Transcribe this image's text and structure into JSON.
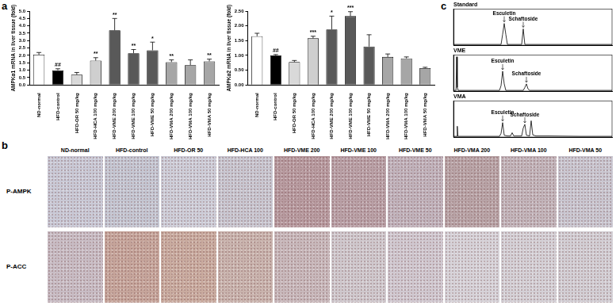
{
  "chart_data": [
    {
      "type": "bar",
      "y_label": "AMPKα1 mRNA in liver tissue (fold)",
      "categories": [
        "ND-normal",
        "HFD-control",
        "HFD-OR 50 mg/kg",
        "HFD-HCA 100 mg/kg",
        "HFD-VME 200 mg/kg",
        "HFD-VME 100 mg/kg",
        "HFD-VME 50 mg/kg",
        "HFD-VMA 200 mg/kg",
        "HFD-VMA 100 mg/kg",
        "HFD-VMA 50 mg/kg"
      ],
      "values": [
        2.05,
        1.0,
        0.7,
        1.65,
        3.7,
        2.15,
        2.35,
        1.55,
        1.35,
        1.6
      ],
      "errors": [
        0.15,
        0.1,
        0.15,
        0.2,
        0.8,
        0.25,
        0.55,
        0.15,
        0.35,
        0.15
      ],
      "annotations": [
        null,
        "##",
        null,
        "**",
        "**",
        "**",
        "*",
        "**",
        null,
        "**"
      ],
      "colors": [
        "#ffffff",
        "#000000",
        "#d9d9d9",
        "#cfcfcf",
        "#595959",
        "#595959",
        "#595959",
        "#a6a6a6",
        "#a6a6a6",
        "#a6a6a6"
      ],
      "ylim": [
        0,
        5
      ],
      "yticks": [
        {
          "value": 0,
          "label": "0.0"
        },
        {
          "value": 0.5,
          "label": "0.5"
        },
        {
          "value": 1,
          "label": "1.0"
        },
        {
          "value": 1.5,
          "label": "1.5"
        },
        {
          "value": 2,
          "label": "2.0"
        },
        {
          "value": 2.5,
          "label": "2.5"
        },
        {
          "value": 3,
          "label": "3.0"
        },
        {
          "value": 3.5,
          "label": "3.5"
        },
        {
          "value": 4,
          "label": "4.0"
        },
        {
          "value": 4.5,
          "label": "4.5"
        },
        {
          "value": 5,
          "label": "5.0"
        }
      ],
      "grid": false
    },
    {
      "type": "bar",
      "y_label": "AMPKα2 mRNA in liver tissue (fold)",
      "categories": [
        "ND-normal",
        "HFD-control",
        "HFD-OR 50 mg/kg",
        "HFD-HCA 100 mg/kg",
        "HFD-VME 200 mg/kg",
        "HFD-VME 100 mg/kg",
        "HFD-VME 50 mg/kg",
        "HFD-VMA 200 mg/kg",
        "HFD-VMA 100 mg/kg",
        "HFD-VMA 50 mg/kg"
      ],
      "values": [
        1.65,
        1.0,
        0.78,
        1.58,
        1.88,
        2.33,
        1.3,
        0.95,
        0.9,
        0.57
      ],
      "errors": [
        0.1,
        0.03,
        0.05,
        0.07,
        0.45,
        0.15,
        0.4,
        0.1,
        0.05,
        0.03
      ],
      "annotations": [
        null,
        "##",
        null,
        "***",
        "*",
        "***",
        null,
        null,
        null,
        null
      ],
      "colors": [
        "#ffffff",
        "#000000",
        "#d9d9d9",
        "#cfcfcf",
        "#595959",
        "#595959",
        "#595959",
        "#a6a6a6",
        "#a6a6a6",
        "#a6a6a6"
      ],
      "ylim": [
        0,
        2.5
      ],
      "yticks": [
        {
          "value": 0,
          "label": "0.00"
        },
        {
          "value": 0.5,
          "label": "0.50"
        },
        {
          "value": 1,
          "label": "1.00"
        },
        {
          "value": 1.5,
          "label": "1.50"
        },
        {
          "value": 2,
          "label": "2.00"
        },
        {
          "value": 2.5,
          "label": "2.50"
        }
      ],
      "grid": false
    },
    {
      "type": "line",
      "title": "Standard",
      "x": [
        0,
        5,
        10,
        15,
        15.5,
        16,
        16.5,
        17,
        20,
        21.5,
        22,
        22.5,
        23,
        30,
        40,
        50
      ],
      "values": [
        2,
        2,
        2,
        2,
        30,
        60,
        30,
        2,
        2,
        2,
        45,
        2,
        2,
        2,
        2,
        2
      ],
      "color": "#000000",
      "xlim": [
        0,
        50
      ],
      "ylim": [
        0,
        100
      ],
      "tick_labels": false,
      "grid": false,
      "annotations": [
        {
          "text": "Esculetin",
          "x": 16
        },
        {
          "text": "Schaftoside",
          "x": 22
        }
      ]
    },
    {
      "type": "line",
      "title": "VME",
      "x": [
        0,
        0.8,
        1,
        1.2,
        1.5,
        5,
        10,
        14.5,
        15,
        15.5,
        16,
        16.5,
        20,
        22,
        22.5,
        23,
        23.5,
        24,
        30,
        40,
        50
      ],
      "values": [
        2,
        2,
        95,
        10,
        2,
        2,
        2,
        2,
        15,
        55,
        20,
        2,
        2,
        2,
        10,
        20,
        6,
        2,
        2,
        2,
        2
      ],
      "color": "#000000",
      "xlim": [
        0,
        50
      ],
      "ylim": [
        0,
        100
      ],
      "tick_labels": false,
      "grid": false,
      "annotations": [
        {
          "text": "Esculetin",
          "x": 15.5
        },
        {
          "text": "Schaftoside",
          "x": 23
        }
      ]
    },
    {
      "type": "line",
      "title": "VMA",
      "x": [
        0,
        1,
        1.2,
        1.4,
        5,
        10,
        14.5,
        15,
        15.5,
        16,
        17,
        18,
        18.5,
        19,
        20,
        21.5,
        22,
        22.5,
        23,
        24,
        24.5,
        25,
        26,
        30,
        40,
        50
      ],
      "values": [
        2,
        2,
        30,
        2,
        2,
        2,
        2,
        10,
        40,
        5,
        3,
        3,
        12,
        3,
        3,
        3,
        25,
        35,
        5,
        3,
        45,
        6,
        3,
        3,
        2,
        2
      ],
      "color": "#000000",
      "xlim": [
        0,
        50
      ],
      "ylim": [
        0,
        100
      ],
      "tick_labels": false,
      "grid": false,
      "annotations": [
        {
          "text": "Esculetin",
          "x": 15.5
        },
        {
          "text": "Schaftoside",
          "x": 22.5
        }
      ]
    }
  ],
  "figure": {
    "panel_labels": [
      "a",
      "b",
      "c"
    ],
    "micrographs": {
      "columns": [
        "ND-normal",
        "HFD-control",
        "HFD-OR 50",
        "HFD-HCA 100",
        "HFD-VME 200",
        "HFD-VME 100",
        "HFD-VME 50",
        "HFD-VMA 200",
        "HFD-VMA 100",
        "HFD-VMA 50"
      ],
      "rows": [
        "P-AMPK",
        "P-ACC"
      ]
    }
  }
}
